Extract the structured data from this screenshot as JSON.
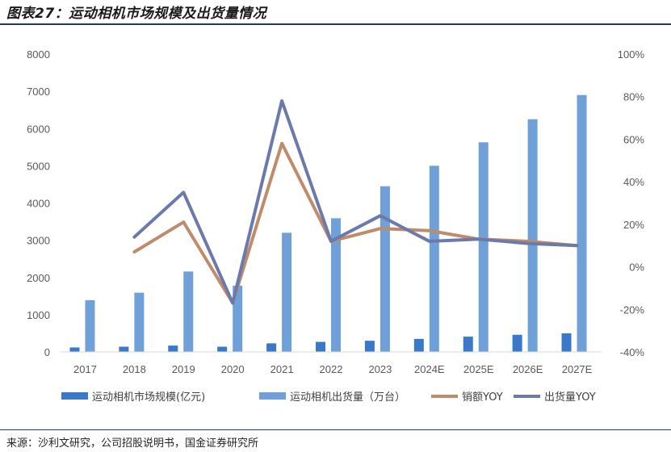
{
  "header": {
    "title": "图表27：运动相机市场规模及出货量情况"
  },
  "footer": {
    "source": "来源：沙利文研究，公司招股说明书，国金证券研究所"
  },
  "colors": {
    "market": "#3a78c9",
    "shipment": "#6fa0d8",
    "sales_yoy": "#c08b6a",
    "ship_yoy": "#6b79ab",
    "rule": "#1f3a6e"
  },
  "chart_data": {
    "type": "bar",
    "categories": [
      "2017",
      "2018",
      "2019",
      "2020",
      "2021",
      "2022",
      "2023",
      "2024E",
      "2025E",
      "2026E",
      "2027E"
    ],
    "series": [
      {
        "name": "运动相机市场规模(亿元)",
        "type": "bar",
        "axis": "left",
        "values": [
          120,
          140,
          170,
          140,
          230,
          270,
          300,
          350,
          410,
          460,
          500
        ]
      },
      {
        "name": "运动相机出货量（万台）",
        "type": "bar",
        "axis": "left",
        "values": [
          1390,
          1590,
          2160,
          1780,
          3200,
          3590,
          4450,
          5000,
          5630,
          6250,
          6900
        ]
      },
      {
        "name": "销额YOY",
        "type": "line",
        "axis": "right",
        "values": [
          null,
          7,
          21,
          -17,
          58,
          12,
          18,
          17,
          13,
          12,
          10
        ]
      },
      {
        "name": "出货量YOY",
        "type": "line",
        "axis": "right",
        "values": [
          null,
          14,
          35,
          -17,
          78,
          12,
          24,
          12,
          13,
          11,
          10
        ]
      }
    ],
    "y_left": {
      "min": 0,
      "max": 8000,
      "ticks": [
        "0",
        "1000",
        "2000",
        "3000",
        "4000",
        "5000",
        "6000",
        "7000",
        "8000"
      ]
    },
    "y_right": {
      "min": -40,
      "max": 100,
      "ticks": [
        "-40%",
        "-20%",
        "0%",
        "20%",
        "40%",
        "60%",
        "80%",
        "100%"
      ]
    },
    "grid": false,
    "legend_position": "bottom"
  }
}
